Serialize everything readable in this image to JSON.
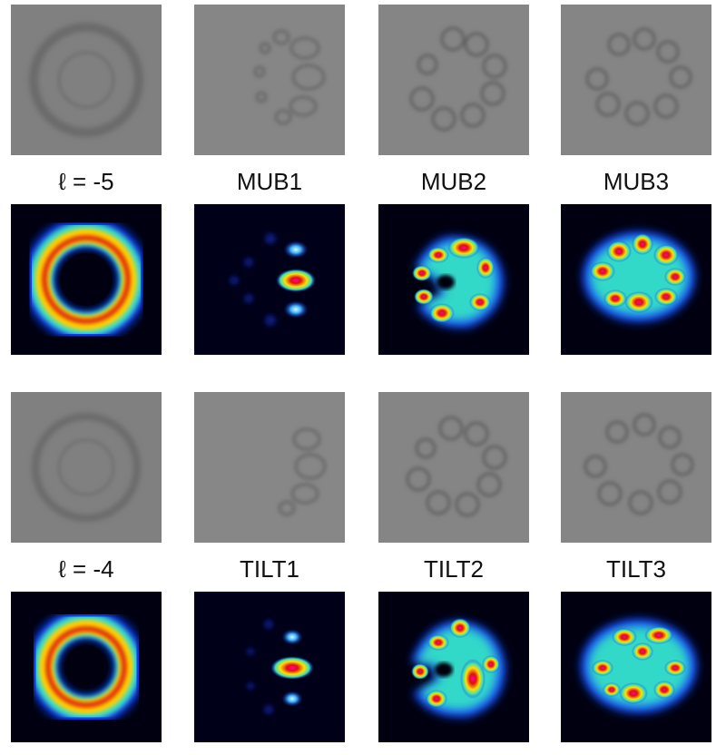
{
  "rows": [
    {
      "labels": [
        "ℓ = -5",
        "MUB1",
        "MUB2",
        "MUB3"
      ]
    },
    {
      "labels": [
        "ℓ = -4",
        "TILT1",
        "TILT2",
        "TILT3"
      ]
    }
  ]
}
